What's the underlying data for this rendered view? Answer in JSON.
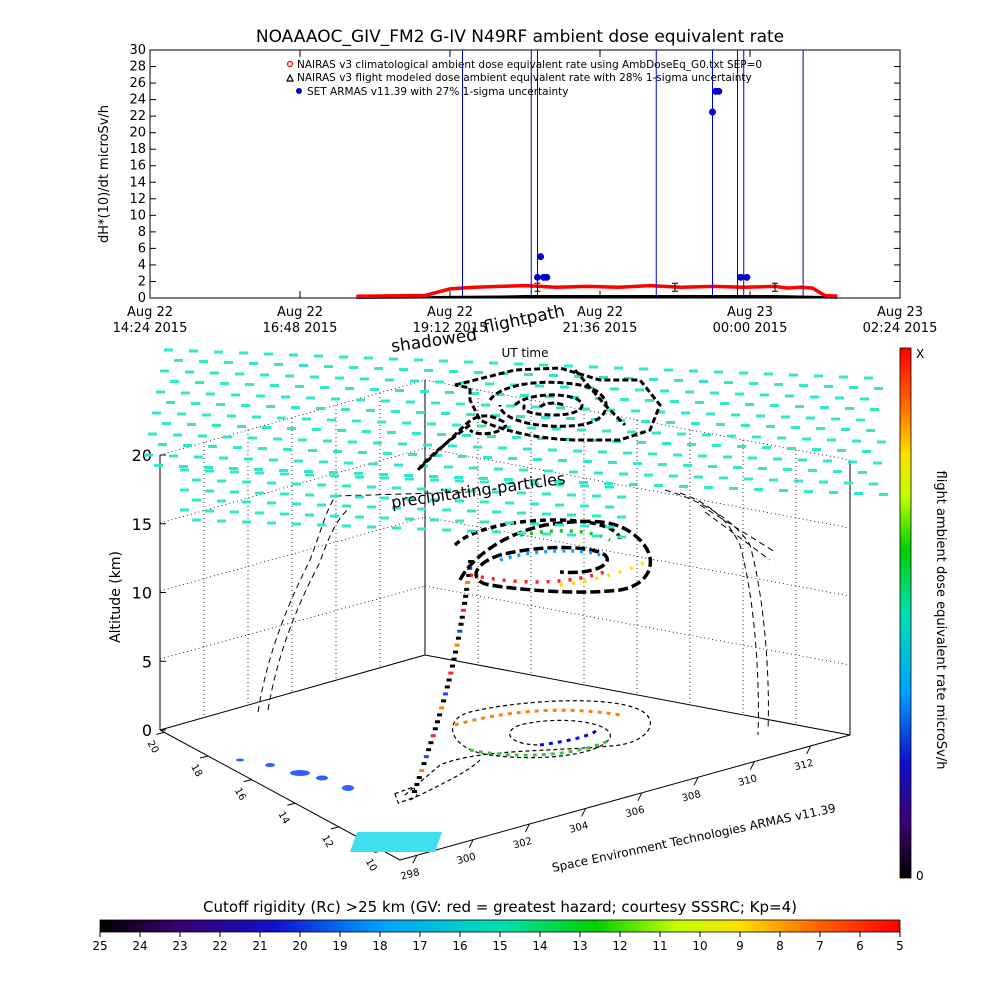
{
  "title": "NOAAAOC_GIV_FM2 G-IV    N49RF  ambient dose equivalent rate",
  "chart_data": [
    {
      "type": "line",
      "ylabel": "dH*(10)/dt microSv/h",
      "xlabel": "UT time",
      "ylim": [
        0,
        30
      ],
      "yticks": [
        "0",
        "2",
        "4",
        "6",
        "8",
        "10",
        "12",
        "14",
        "16",
        "18",
        "20",
        "22",
        "24",
        "26",
        "28",
        "30"
      ],
      "xticks": [
        {
          "day": "Aug 22",
          "time": "14:24 2015"
        },
        {
          "day": "Aug 22",
          "time": "16:48 2015"
        },
        {
          "day": "Aug 22",
          "time": "19:12 2015"
        },
        {
          "day": "Aug 22",
          "time": "21:36 2015"
        },
        {
          "day": "Aug 23",
          "time": "00:00 2015"
        },
        {
          "day": "Aug 23",
          "time": "02:24 2015"
        }
      ],
      "xlim_hours": [
        0,
        12
      ],
      "legend": [
        "NAIRAS v3 climatological ambient dose equivalent rate using AmbDoseEq_G0.txt SEP=0",
        "NAIRAS v3 flight modeled dose ambient equivalent rate with 28% 1-sigma uncertainty",
        "SET ARMAS v11.39 with 27% 1-sigma uncertainty"
      ],
      "series": [
        {
          "name": "NAIRAS v3 climatological ambient dose equivalent rate using AmbDoseEq_G0.txt SEP=0",
          "color": "#ff0000",
          "x_hours": [
            3.3,
            4.4,
            4.8,
            5.2,
            5.6,
            6.0,
            6.5,
            7.0,
            7.5,
            8.0,
            8.5,
            9.0,
            9.5,
            10.0,
            10.2,
            10.4,
            10.6,
            10.8,
            11.0
          ],
          "y": [
            0.2,
            0.3,
            1.1,
            1.3,
            1.4,
            1.5,
            1.3,
            1.4,
            1.3,
            1.5,
            1.3,
            1.4,
            1.3,
            1.4,
            1.2,
            1.3,
            1.2,
            0.3,
            0.2
          ]
        },
        {
          "name": "NAIRAS v3 flight modeled dose ambient equivalent rate with 28% 1-sigma uncertainty",
          "color": "#000000",
          "x_hours": [
            3.3,
            4.4,
            5.6,
            6.0,
            7.0,
            8.0,
            9.0,
            10.0,
            10.8,
            11.0
          ],
          "y": [
            0.05,
            0.1,
            0.15,
            0.2,
            0.2,
            0.2,
            0.2,
            0.2,
            0.1,
            0.05
          ]
        },
        {
          "name": "SET ARMAS v11.39 with 27% 1-sigma uncertainty",
          "color": "#0000cc",
          "spikes_hours": [
            5.0,
            6.1,
            6.2,
            8.1,
            9.0,
            9.4,
            9.5,
            10.45
          ],
          "points": [
            [
              6.2,
              2.5
            ],
            [
              6.25,
              5.0
            ],
            [
              6.3,
              2.5
            ],
            [
              6.35,
              2.5
            ],
            [
              9.0,
              22.5
            ],
            [
              9.05,
              25.0
            ],
            [
              9.1,
              25.0
            ],
            [
              9.45,
              2.5
            ],
            [
              9.55,
              2.5
            ]
          ]
        }
      ]
    },
    {
      "type": "scatter",
      "zlabel": "Altitude (km)",
      "zticks": [
        "0",
        "5",
        "10",
        "15",
        "20"
      ],
      "xticks": [
        "298",
        "300",
        "302",
        "304",
        "306",
        "308",
        "310",
        "312"
      ],
      "yticks": [
        "10",
        "12",
        "14",
        "16",
        "18",
        "20"
      ],
      "labels": [
        "shadowed",
        "flightpath",
        "precipitating-particles"
      ],
      "colorbar": {
        "label": "flight ambient dose equivalent rate microSv/h",
        "top": "X",
        "bottom": "0"
      },
      "credit": "Space Environment Technologies ARMAS v11.39"
    },
    {
      "type": "heatmap",
      "title": "Cutoff rigidity (Rc) >25 km (GV: red = greatest hazard; courtesy SSSRC; Kp=4)",
      "ticks": [
        "25",
        "24",
        "23",
        "22",
        "21",
        "20",
        "19",
        "18",
        "17",
        "16",
        "15",
        "14",
        "13",
        "12",
        "11",
        "10",
        "9",
        "8",
        "7",
        "6",
        "5"
      ]
    }
  ]
}
